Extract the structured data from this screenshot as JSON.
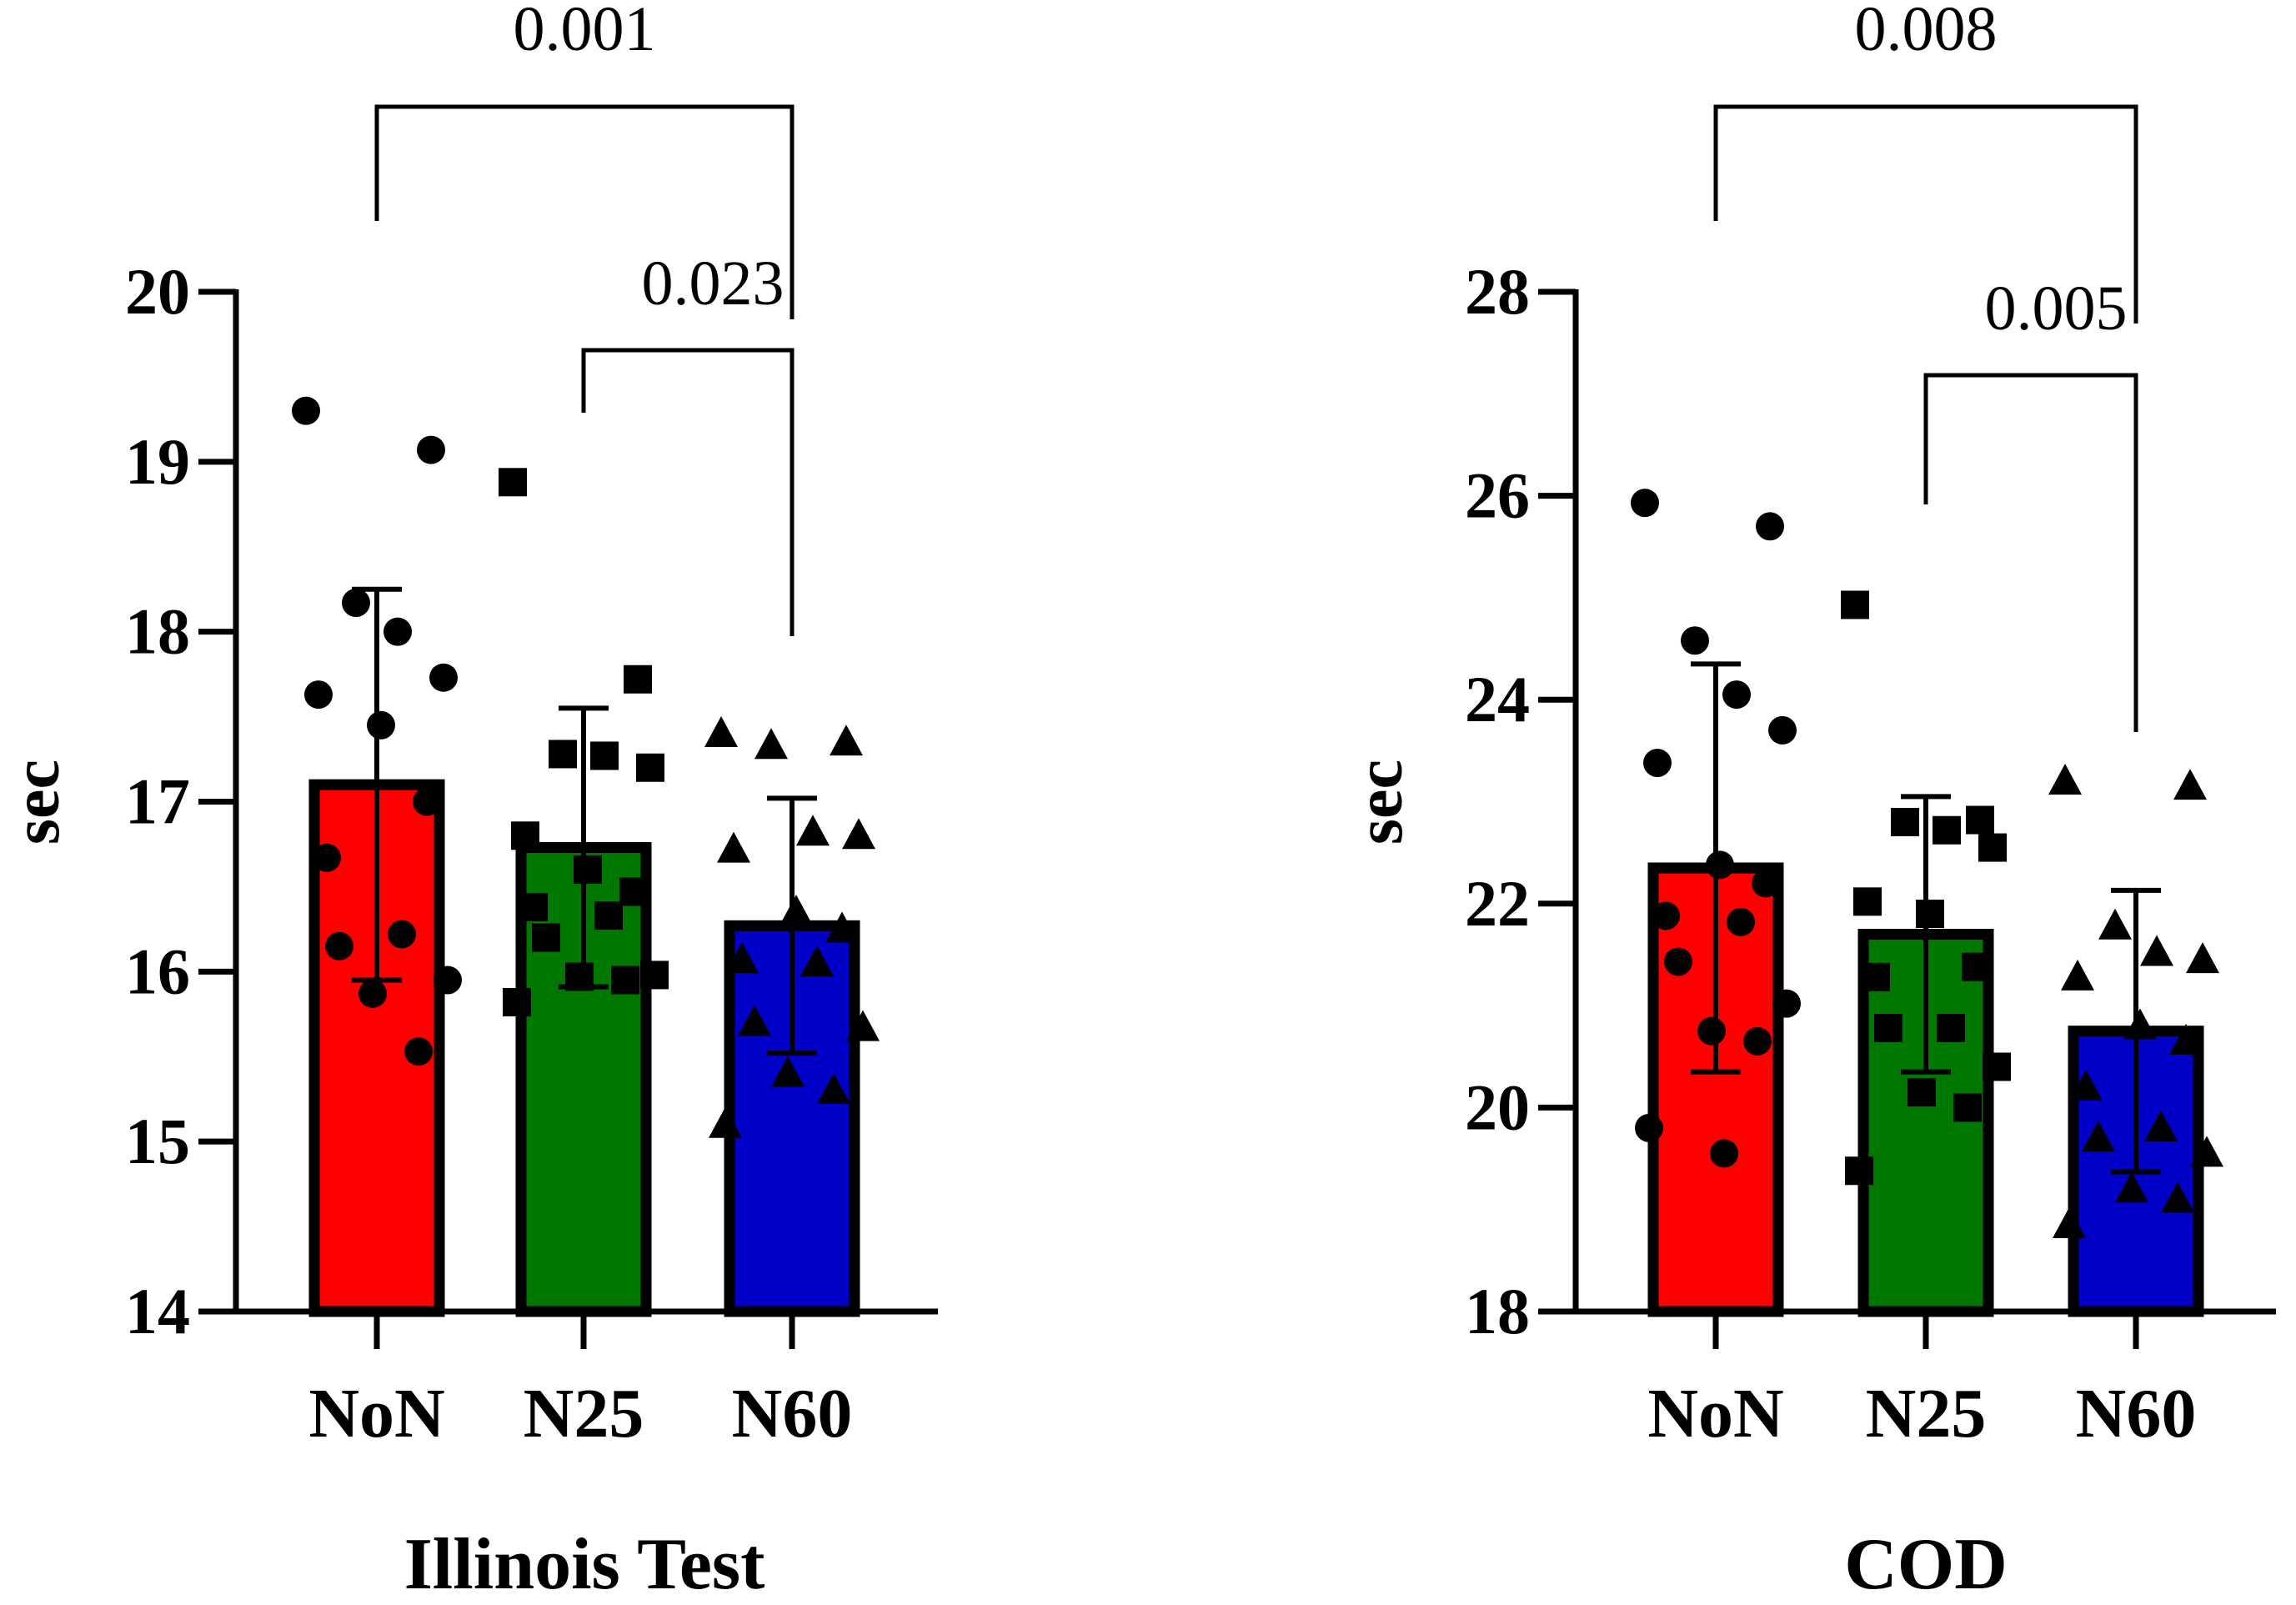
{
  "chart_data": [
    {
      "type": "bar",
      "title": "",
      "xlabel": "Illinois Test",
      "ylabel": "sec",
      "ylim": [
        14,
        20
      ],
      "yticks": [
        "14",
        "15",
        "16",
        "17",
        "18",
        "19",
        "20"
      ],
      "categories": [
        "NoN",
        "N25",
        "N60"
      ],
      "colors": [
        "#ff0000",
        "#007800",
        "#0000c8"
      ],
      "markers": [
        "circle",
        "square",
        "triangle"
      ],
      "values": [
        17.1,
        16.73,
        16.27
      ],
      "sd": [
        1.15,
        0.82,
        0.75
      ],
      "points": [
        [
          19.3,
          19.07,
          18.17,
          18.0,
          17.73,
          17.63,
          17.45,
          17.0,
          16.67,
          16.22,
          16.15,
          15.95,
          15.87,
          15.53
        ],
        [
          18.88,
          17.72,
          17.28,
          17.27,
          17.2,
          16.8,
          16.6,
          16.47,
          16.38,
          16.33,
          16.2,
          15.98,
          15.97,
          15.95,
          15.82
        ],
        [
          17.4,
          17.35,
          17.33,
          16.82,
          16.8,
          16.72,
          16.35,
          16.25,
          16.07,
          16.05,
          15.7,
          15.67,
          15.4,
          15.3,
          15.1
        ]
      ],
      "comparisons": [
        {
          "from": 0,
          "to": 2,
          "label": "0.001",
          "level": 0
        },
        {
          "from": 1,
          "to": 2,
          "label": "0.023",
          "level": 1
        }
      ]
    },
    {
      "type": "bar",
      "title": "",
      "xlabel": "COD",
      "ylabel": "sec",
      "ylim": [
        18,
        28
      ],
      "yticks": [
        "18",
        "20",
        "22",
        "24",
        "26",
        "28"
      ],
      "categories": [
        "NoN",
        "N25",
        "N60"
      ],
      "colors": [
        "#ff0000",
        "#007800",
        "#0000c8"
      ],
      "markers": [
        "circle",
        "square",
        "triangle"
      ],
      "values": [
        22.35,
        21.7,
        20.75
      ],
      "sd": [
        2.0,
        1.35,
        1.38
      ],
      "points": [
        [
          25.93,
          25.7,
          24.58,
          24.05,
          23.7,
          23.38,
          22.38,
          22.2,
          21.88,
          21.82,
          21.43,
          21.02,
          20.75,
          20.65,
          19.8,
          19.55
        ],
        [
          24.93,
          22.82,
          22.8,
          22.72,
          22.55,
          22.02,
          21.9,
          21.38,
          21.28,
          20.78,
          20.78,
          20.4,
          20.15,
          20.0,
          19.38
        ],
        [
          23.2,
          23.15,
          21.78,
          21.52,
          21.45,
          21.28,
          20.8,
          20.65,
          20.2,
          19.8,
          19.7,
          19.55,
          19.2,
          19.1,
          18.85
        ]
      ],
      "comparisons": [
        {
          "from": 0,
          "to": 2,
          "label": "0.008",
          "level": 0
        },
        {
          "from": 1,
          "to": 2,
          "label": "0.005",
          "level": 1
        }
      ]
    }
  ]
}
